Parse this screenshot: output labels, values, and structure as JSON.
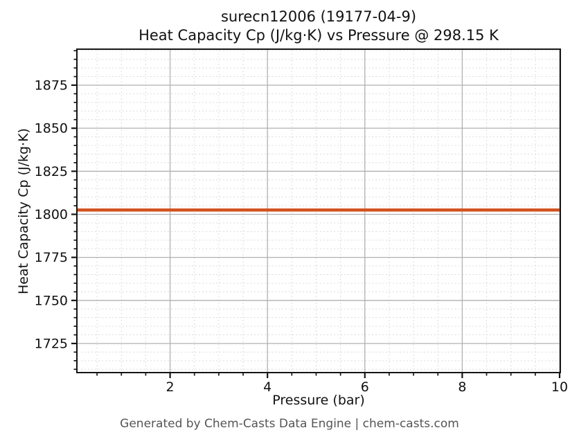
{
  "footer": {
    "text": "Generated by Chem-Casts Data Engine | chem-casts.com"
  },
  "colors": {
    "line": "#d2521e",
    "grid_major": "#b0b0b0",
    "grid_minor": "#dcdcdc",
    "spine": "#151515",
    "tick": "#151515",
    "label_text": "#111111",
    "footer_text": "#555555",
    "background": "#ffffff"
  },
  "chart_data": {
    "type": "line",
    "title": "surecn12006 (19177-04-9)\nHeat Capacity Cp (J/kg·K) vs Pressure @ 298.15 K",
    "title_lines": [
      "surecn12006 (19177-04-9)",
      "Heat Capacity Cp (J/kg·K) vs Pressure @ 298.15 K"
    ],
    "xlabel": "Pressure (bar)",
    "ylabel": "Heat Capacity Cp (J/kg·K)",
    "xlim": [
      0.1,
      10
    ],
    "ylim": [
      1708.5,
      1895.5
    ],
    "xticks": [
      2,
      4,
      6,
      8,
      10
    ],
    "yticks": [
      1725,
      1750,
      1775,
      1800,
      1825,
      1850,
      1875
    ],
    "x_minor_step": 0.5,
    "y_minor_step": 5,
    "grid": "major-solid+minor-dashed",
    "legend": "none",
    "series": [
      {
        "name": "Heat Capacity Cp",
        "color": "#d2521e",
        "x": [
          0.1,
          10
        ],
        "y": [
          1802.5,
          1802.5
        ]
      }
    ]
  }
}
